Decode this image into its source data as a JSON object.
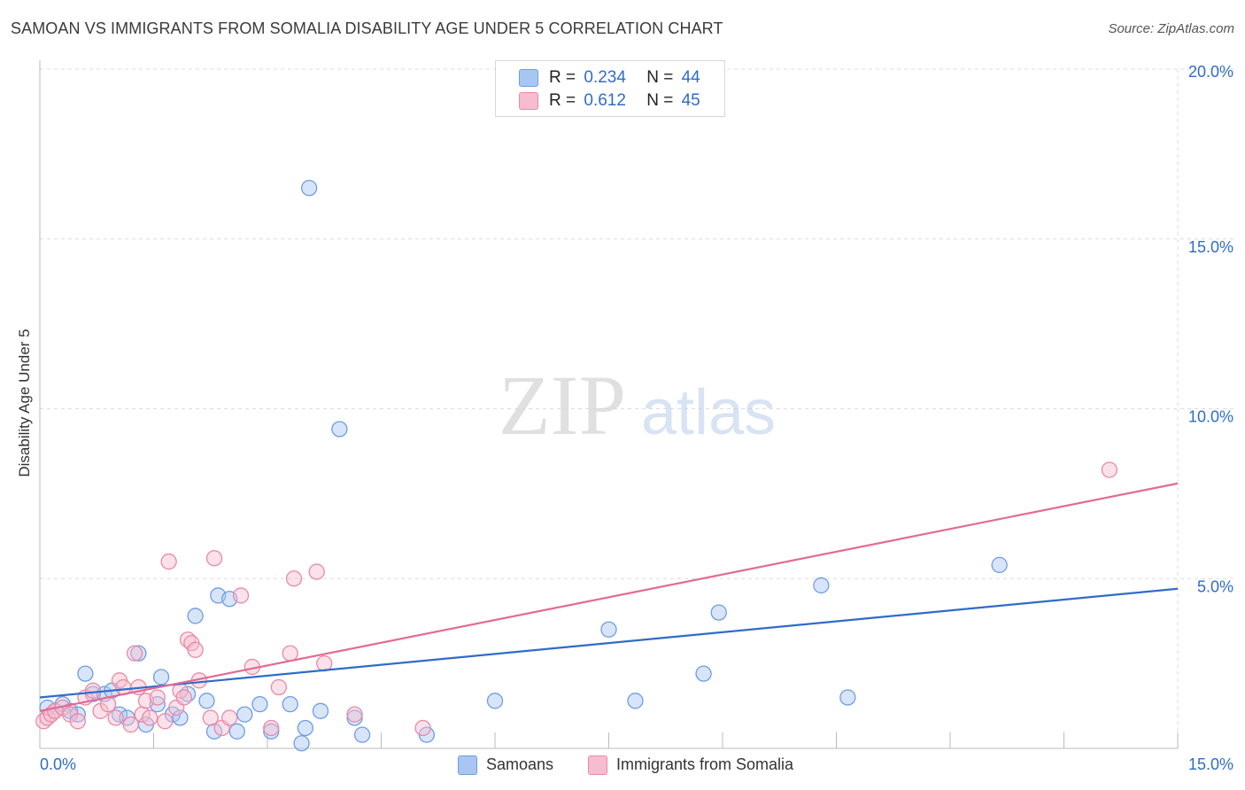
{
  "title": "SAMOAN VS IMMIGRANTS FROM SOMALIA DISABILITY AGE UNDER 5 CORRELATION CHART",
  "source": "Source: ZipAtlas.com",
  "watermark": {
    "zip": "ZIP",
    "atlas": "atlas"
  },
  "legend_top": [
    {
      "r_label": "R =",
      "r_value": "0.234",
      "n_label": "N =",
      "n_value": "44"
    },
    {
      "r_label": "R =",
      "r_value": "0.612",
      "n_label": "N =",
      "n_value": "45"
    }
  ],
  "legend_bottom": [
    {
      "label": "Samoans"
    },
    {
      "label": "Immigrants from Somalia"
    }
  ],
  "chart_data": {
    "type": "scatter",
    "title": "SAMOAN VS IMMIGRANTS FROM SOMALIA DISABILITY AGE UNDER 5 CORRELATION CHART",
    "xlabel": "",
    "ylabel": "Disability Age Under 5",
    "xlim": [
      0,
      15
    ],
    "ylim": [
      0,
      20
    ],
    "x_tick_labels": [
      "0.0%",
      "15.0%"
    ],
    "y_tick_values": [
      5,
      10,
      15,
      20
    ],
    "y_tick_labels": [
      "5.0%",
      "10.0%",
      "15.0%",
      "20.0%"
    ],
    "grid": true,
    "legend_position": "top-center",
    "series": [
      {
        "name": "Samoans",
        "color": "#6d9de6",
        "fill": "#a9c6f2",
        "r": 0.234,
        "n": 44,
        "trend": {
          "x": [
            0,
            15
          ],
          "y": [
            1.5,
            4.7
          ],
          "color": "#2f6cc8"
        },
        "points": [
          {
            "x": 0.1,
            "y": 1.2
          },
          {
            "x": 0.2,
            "y": 1.1
          },
          {
            "x": 0.3,
            "y": 1.3
          },
          {
            "x": 0.4,
            "y": 1.1
          },
          {
            "x": 0.5,
            "y": 1.0
          },
          {
            "x": 0.6,
            "y": 2.2
          },
          {
            "x": 0.7,
            "y": 1.6
          },
          {
            "x": 0.85,
            "y": 1.6
          },
          {
            "x": 0.95,
            "y": 1.7
          },
          {
            "x": 1.05,
            "y": 1.0
          },
          {
            "x": 1.15,
            "y": 0.9
          },
          {
            "x": 1.3,
            "y": 2.8
          },
          {
            "x": 1.4,
            "y": 0.7
          },
          {
            "x": 1.55,
            "y": 1.3
          },
          {
            "x": 1.6,
            "y": 2.1
          },
          {
            "x": 1.75,
            "y": 1.0
          },
          {
            "x": 1.85,
            "y": 0.9
          },
          {
            "x": 1.95,
            "y": 1.6
          },
          {
            "x": 2.05,
            "y": 3.9
          },
          {
            "x": 2.2,
            "y": 1.4
          },
          {
            "x": 2.3,
            "y": 0.5
          },
          {
            "x": 2.35,
            "y": 4.5
          },
          {
            "x": 2.5,
            "y": 4.4
          },
          {
            "x": 2.6,
            "y": 0.5
          },
          {
            "x": 2.7,
            "y": 1.0
          },
          {
            "x": 2.9,
            "y": 1.3
          },
          {
            "x": 3.05,
            "y": 0.5
          },
          {
            "x": 3.3,
            "y": 1.3
          },
          {
            "x": 3.5,
            "y": 0.6
          },
          {
            "x": 3.55,
            "y": 16.5
          },
          {
            "x": 3.7,
            "y": 1.1
          },
          {
            "x": 3.95,
            "y": 9.4
          },
          {
            "x": 4.15,
            "y": 0.9
          },
          {
            "x": 4.25,
            "y": 0.4
          },
          {
            "x": 5.1,
            "y": 0.4
          },
          {
            "x": 6.0,
            "y": 1.4
          },
          {
            "x": 7.5,
            "y": 3.5
          },
          {
            "x": 7.85,
            "y": 1.4
          },
          {
            "x": 8.75,
            "y": 2.2
          },
          {
            "x": 8.95,
            "y": 4.0
          },
          {
            "x": 10.3,
            "y": 4.8
          },
          {
            "x": 10.65,
            "y": 1.5
          },
          {
            "x": 12.65,
            "y": 5.4
          },
          {
            "x": 3.45,
            "y": 0.15
          }
        ]
      },
      {
        "name": "Immigrants from Somalia",
        "color": "#e98aa8",
        "fill": "#f6bccf",
        "r": 0.612,
        "n": 45,
        "trend": {
          "x": [
            0,
            15
          ],
          "y": [
            1.1,
            7.8
          ],
          "color": "#e26b94"
        },
        "points": [
          {
            "x": 0.05,
            "y": 0.8
          },
          {
            "x": 0.1,
            "y": 0.9
          },
          {
            "x": 0.15,
            "y": 1.0
          },
          {
            "x": 0.2,
            "y": 1.1
          },
          {
            "x": 0.3,
            "y": 1.2
          },
          {
            "x": 0.4,
            "y": 1.0
          },
          {
            "x": 0.5,
            "y": 0.8
          },
          {
            "x": 0.6,
            "y": 1.5
          },
          {
            "x": 0.7,
            "y": 1.7
          },
          {
            "x": 0.8,
            "y": 1.1
          },
          {
            "x": 0.9,
            "y": 1.3
          },
          {
            "x": 1.0,
            "y": 0.9
          },
          {
            "x": 1.05,
            "y": 2.0
          },
          {
            "x": 1.1,
            "y": 1.8
          },
          {
            "x": 1.2,
            "y": 0.7
          },
          {
            "x": 1.25,
            "y": 2.8
          },
          {
            "x": 1.3,
            "y": 1.8
          },
          {
            "x": 1.35,
            "y": 1.0
          },
          {
            "x": 1.4,
            "y": 1.4
          },
          {
            "x": 1.45,
            "y": 0.9
          },
          {
            "x": 1.55,
            "y": 1.5
          },
          {
            "x": 1.65,
            "y": 0.8
          },
          {
            "x": 1.7,
            "y": 5.5
          },
          {
            "x": 1.8,
            "y": 1.2
          },
          {
            "x": 1.85,
            "y": 1.7
          },
          {
            "x": 1.9,
            "y": 1.5
          },
          {
            "x": 1.95,
            "y": 3.2
          },
          {
            "x": 2.0,
            "y": 3.1
          },
          {
            "x": 2.05,
            "y": 2.9
          },
          {
            "x": 2.1,
            "y": 2.0
          },
          {
            "x": 2.25,
            "y": 0.9
          },
          {
            "x": 2.3,
            "y": 5.6
          },
          {
            "x": 2.4,
            "y": 0.6
          },
          {
            "x": 2.5,
            "y": 0.9
          },
          {
            "x": 2.65,
            "y": 4.5
          },
          {
            "x": 2.8,
            "y": 2.4
          },
          {
            "x": 3.05,
            "y": 0.6
          },
          {
            "x": 3.15,
            "y": 1.8
          },
          {
            "x": 3.3,
            "y": 2.8
          },
          {
            "x": 3.35,
            "y": 5.0
          },
          {
            "x": 3.65,
            "y": 5.2
          },
          {
            "x": 3.75,
            "y": 2.5
          },
          {
            "x": 4.15,
            "y": 1.0
          },
          {
            "x": 5.05,
            "y": 0.6
          },
          {
            "x": 14.1,
            "y": 8.2
          }
        ]
      }
    ]
  },
  "colors": {
    "axis_tick_text": "#2f6cc8",
    "grid": "#dcdcdc",
    "axis": "#bbbbbb"
  }
}
